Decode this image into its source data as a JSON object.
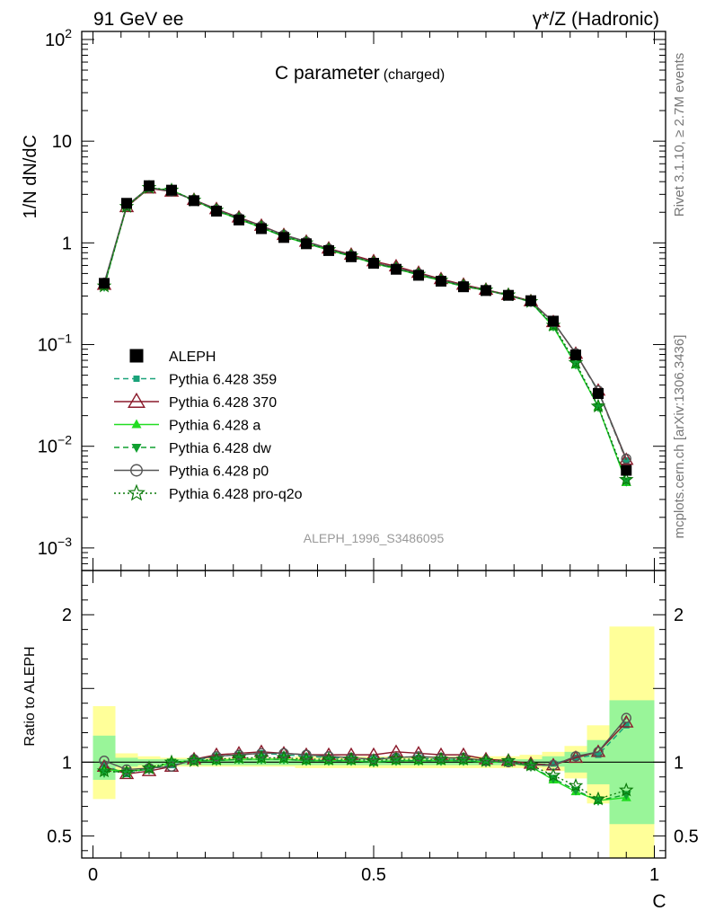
{
  "header": {
    "left": "91 GeV ee",
    "right": "γ*/Z (Hadronic)"
  },
  "side_labels": {
    "rivet": "Rivet 3.1.10, ≥ 2.7M events",
    "mcplots": "mcplots.cern.ch [arXiv:1306.3436]"
  },
  "main_plot": {
    "title": "C parameter",
    "title_suffix": "(charged)",
    "ylabel": "1/N dN/dC",
    "watermark": "ALEPH_1996_S3486095",
    "ylim": [
      0.0006,
      120
    ],
    "yscale": "log",
    "ytick_labels": [
      {
        "value": 0.001,
        "base": "10",
        "exp": "−3"
      },
      {
        "value": 0.01,
        "base": "10",
        "exp": "−2"
      },
      {
        "value": 0.1,
        "base": "10",
        "exp": "−1"
      },
      {
        "value": 1,
        "base": "1",
        "exp": ""
      },
      {
        "value": 10,
        "base": "10",
        "exp": ""
      },
      {
        "value": 100,
        "base": "10",
        "exp": "2"
      }
    ]
  },
  "ratio_plot": {
    "ylabel": "Ratio to ALEPH",
    "ylim": [
      0.35,
      2.3
    ],
    "ytick_labels": [
      {
        "value": 0.5,
        "label": "0.5"
      },
      {
        "value": 1,
        "label": "1"
      },
      {
        "value": 2,
        "label": "2"
      }
    ]
  },
  "x_axis": {
    "label": "C",
    "xlim": [
      -0.02,
      1.02
    ],
    "tick_labels": [
      {
        "value": 0,
        "label": "0"
      },
      {
        "value": 0.5,
        "label": "0.5"
      },
      {
        "value": 1,
        "label": "1"
      }
    ]
  },
  "colors": {
    "data": "#000000",
    "p359": "#1aa37a",
    "p370": "#8b1a2b",
    "pa": "#22dd22",
    "pdw": "#10a030",
    "pp0": "#555555",
    "pq2o": "#0a7a0a",
    "band_outer": "#ffff99",
    "band_inner": "#99f599"
  },
  "chart_data": {
    "type": "line",
    "x": [
      0.02,
      0.06,
      0.1,
      0.14,
      0.18,
      0.22,
      0.26,
      0.3,
      0.34,
      0.38,
      0.42,
      0.46,
      0.5,
      0.54,
      0.58,
      0.62,
      0.66,
      0.7,
      0.74,
      0.78,
      0.82,
      0.86,
      0.9,
      0.95
    ],
    "bin_edges": [
      0,
      0.04,
      0.08,
      0.12,
      0.16,
      0.2,
      0.24,
      0.28,
      0.32,
      0.36,
      0.4,
      0.44,
      0.48,
      0.52,
      0.56,
      0.6,
      0.64,
      0.68,
      0.72,
      0.76,
      0.8,
      0.84,
      0.88,
      0.92,
      1.0
    ],
    "data": {
      "name": "ALEPH",
      "values": [
        0.4,
        2.45,
        3.65,
        3.3,
        2.6,
        2.05,
        1.68,
        1.38,
        1.13,
        0.98,
        0.84,
        0.73,
        0.63,
        0.55,
        0.48,
        0.42,
        0.37,
        0.34,
        0.305,
        0.27,
        0.17,
        0.079,
        0.033,
        0.0058
      ]
    },
    "series": [
      {
        "name": "Pythia 6.428 359",
        "key": "p359",
        "ratio": [
          0.98,
          0.92,
          0.96,
          0.98,
          1.01,
          1.04,
          1.05,
          1.06,
          1.05,
          1.04,
          1.03,
          1.03,
          1.02,
          1.04,
          1.03,
          1.02,
          1.02,
          1.01,
          1.0,
          0.98,
          0.99,
          1.03,
          1.05,
          1.25
        ]
      },
      {
        "name": "Pythia 6.428 370",
        "key": "p370",
        "ratio": [
          0.97,
          0.92,
          0.94,
          0.97,
          1.02,
          1.05,
          1.06,
          1.07,
          1.06,
          1.05,
          1.05,
          1.05,
          1.05,
          1.07,
          1.06,
          1.05,
          1.05,
          1.02,
          1.01,
          0.99,
          0.98,
          1.03,
          1.07,
          1.27
        ]
      },
      {
        "name": "Pythia 6.428 a",
        "key": "pa",
        "ratio": [
          0.95,
          0.94,
          0.95,
          1.0,
          1.01,
          1.01,
          1.02,
          1.02,
          1.02,
          1.01,
          1.01,
          1.01,
          1.0,
          1.01,
          1.01,
          1.01,
          1.01,
          1.0,
          1.0,
          0.97,
          0.88,
          0.8,
          0.74,
          0.76
        ]
      },
      {
        "name": "Pythia 6.428 dw",
        "key": "pdw",
        "ratio": [
          0.93,
          0.94,
          0.95,
          1.0,
          1.01,
          1.01,
          1.02,
          1.02,
          1.02,
          1.01,
          1.01,
          1.01,
          1.0,
          1.01,
          1.01,
          1.01,
          1.01,
          1.0,
          1.0,
          0.97,
          0.89,
          0.81,
          0.74,
          0.78
        ]
      },
      {
        "name": "Pythia 6.428 p0",
        "key": "pp0",
        "ratio": [
          1.01,
          0.95,
          0.96,
          0.97,
          1.02,
          1.04,
          1.05,
          1.06,
          1.06,
          1.05,
          1.04,
          1.03,
          1.02,
          1.03,
          1.04,
          1.03,
          1.03,
          1.01,
          1.0,
          0.98,
          0.98,
          1.04,
          1.07,
          1.3
        ]
      },
      {
        "name": "Pythia 6.428 pro-q2o",
        "key": "pq2o",
        "ratio": [
          0.94,
          0.93,
          0.96,
          1.0,
          1.01,
          1.02,
          1.03,
          1.03,
          1.03,
          1.02,
          1.02,
          1.02,
          1.01,
          1.02,
          1.02,
          1.02,
          1.02,
          1.01,
          1.01,
          0.98,
          0.91,
          0.84,
          0.75,
          0.81
        ]
      }
    ],
    "uncertainty_outer": [
      [
        0.75,
        1.38
      ],
      [
        0.94,
        1.06
      ],
      [
        0.96,
        1.04
      ],
      [
        0.97,
        1.03
      ],
      [
        0.97,
        1.03
      ],
      [
        0.97,
        1.03
      ],
      [
        0.97,
        1.03
      ],
      [
        0.97,
        1.03
      ],
      [
        0.97,
        1.03
      ],
      [
        0.96,
        1.04
      ],
      [
        0.96,
        1.04
      ],
      [
        0.96,
        1.04
      ],
      [
        0.96,
        1.04
      ],
      [
        0.96,
        1.04
      ],
      [
        0.96,
        1.04
      ],
      [
        0.96,
        1.04
      ],
      [
        0.96,
        1.04
      ],
      [
        0.96,
        1.04
      ],
      [
        0.96,
        1.04
      ],
      [
        0.96,
        1.05
      ],
      [
        0.94,
        1.07
      ],
      [
        0.89,
        1.11
      ],
      [
        0.72,
        1.25
      ],
      [
        0.35,
        1.92
      ]
    ],
    "uncertainty_inner": [
      [
        0.88,
        1.18
      ],
      [
        0.97,
        1.03
      ],
      [
        0.98,
        1.02
      ],
      [
        0.98,
        1.02
      ],
      [
        0.98,
        1.02
      ],
      [
        0.98,
        1.02
      ],
      [
        0.98,
        1.02
      ],
      [
        0.98,
        1.02
      ],
      [
        0.98,
        1.02
      ],
      [
        0.98,
        1.02
      ],
      [
        0.98,
        1.02
      ],
      [
        0.98,
        1.02
      ],
      [
        0.98,
        1.02
      ],
      [
        0.98,
        1.02
      ],
      [
        0.98,
        1.02
      ],
      [
        0.98,
        1.02
      ],
      [
        0.98,
        1.02
      ],
      [
        0.98,
        1.02
      ],
      [
        0.98,
        1.02
      ],
      [
        0.98,
        1.02
      ],
      [
        0.97,
        1.04
      ],
      [
        0.93,
        1.07
      ],
      [
        0.85,
        1.15
      ],
      [
        0.58,
        1.42
      ]
    ]
  }
}
